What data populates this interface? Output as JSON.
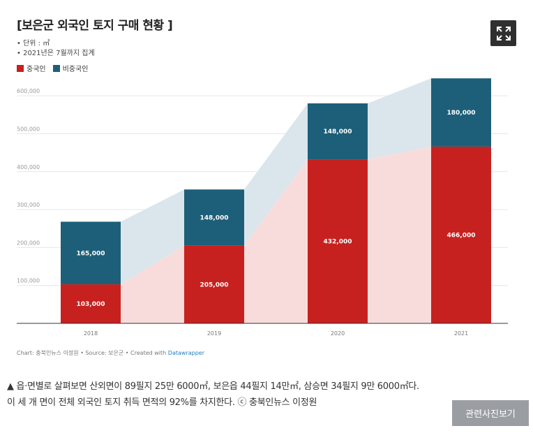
{
  "header": {
    "title": "[보은군 외국인 토지 구매 현황 ]",
    "note_unit": "• 단위 : ㎡",
    "note_period": "• 2021년은 7월까지 집계"
  },
  "legend": [
    {
      "label": "중국인",
      "color": "#c7211f"
    },
    {
      "label": "비중국인",
      "color": "#1d5f78"
    }
  ],
  "chart_data": {
    "type": "bar",
    "stacked": true,
    "categories": [
      "2018",
      "2019",
      "2020",
      "2021"
    ],
    "series": [
      {
        "name": "중국인",
        "color": "#c7211f",
        "values": [
          103000,
          205000,
          432000,
          466000
        ],
        "labels": [
          "103,000",
          "205,000",
          "432,000",
          "466,000"
        ]
      },
      {
        "name": "비중국인",
        "color": "#1d5f78",
        "values": [
          165000,
          148000,
          148000,
          180000
        ],
        "labels": [
          "165,000",
          "148,000",
          "148,000",
          "180,000"
        ]
      }
    ],
    "ylim": [
      0,
      650000
    ],
    "yticks": [
      100000,
      200000,
      300000,
      400000,
      500000,
      600000
    ],
    "ytick_labels": [
      "100,000",
      "200,000",
      "300,000",
      "400,000",
      "500,000",
      "600,000"
    ],
    "grid": true,
    "area_fill_between_bars": true,
    "area_colors": {
      "lower": "#f8dcdc",
      "upper": "#dbe6ec"
    },
    "xlabel": "",
    "ylabel": ""
  },
  "source": {
    "text": "Chart: 충북인뉴스 이정원 • Source: 보은군 • Created with ",
    "link": "Datawrapper"
  },
  "caption": {
    "marker": "▲",
    "line1": " 읍·면별로 살펴보면 산외면이 89필지 25만 6000㎡, 보은읍 44필지 14만㎡, 삼승면 34필지 9만 6000㎡다.",
    "line2": "이 세 개 면이 전체 외국인 토지 취득 면적의 92%를 차지한다. ⓒ 충북인뉴스 이정원"
  },
  "buttons": {
    "related": "관련사진보기",
    "expand_icon": "expand-icon"
  }
}
